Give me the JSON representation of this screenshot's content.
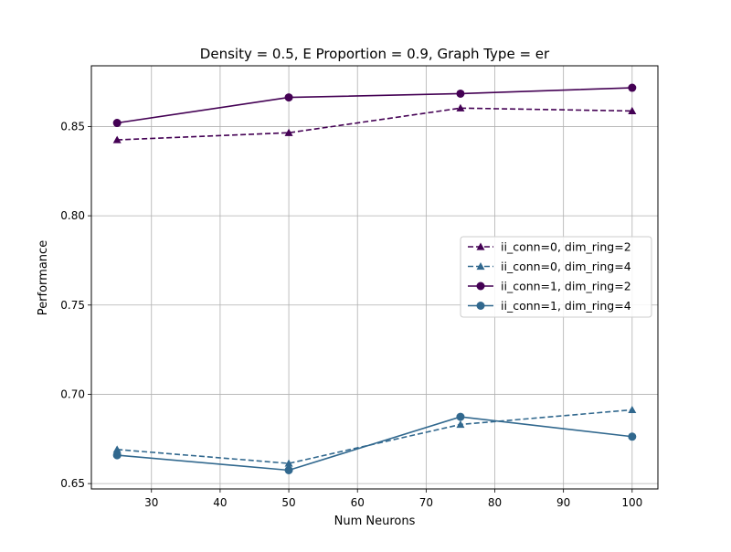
{
  "chart_data": {
    "type": "line",
    "title": "Density = 0.5, E Proportion = 0.9, Graph Type = er",
    "xlabel": "Num Neurons",
    "ylabel": "Performance",
    "x": [
      25,
      50,
      75,
      100
    ],
    "xlim": [
      21.25,
      103.75
    ],
    "ylim": [
      0.647,
      0.884
    ],
    "xticks": [
      30,
      40,
      50,
      60,
      70,
      80,
      90,
      100
    ],
    "yticks": [
      0.65,
      0.7,
      0.75,
      0.8,
      0.85
    ],
    "ytick_labels": [
      "0.65",
      "0.70",
      "0.75",
      "0.80",
      "0.85"
    ],
    "grid": true,
    "legend_position": "center-right",
    "series": [
      {
        "name": "ii_conn=0, dim_ring=2",
        "values": [
          0.8425,
          0.8465,
          0.8603,
          0.8587
        ],
        "color": "#440154",
        "dash": "dashed",
        "marker": "triangle"
      },
      {
        "name": "ii_conn=0, dim_ring=4",
        "values": [
          0.6691,
          0.6613,
          0.6831,
          0.6913
        ],
        "color": "#31688e",
        "dash": "dashed",
        "marker": "triangle"
      },
      {
        "name": "ii_conn=1, dim_ring=2",
        "values": [
          0.852,
          0.8663,
          0.8684,
          0.8717
        ],
        "color": "#440154",
        "dash": "solid",
        "marker": "circle"
      },
      {
        "name": "ii_conn=1, dim_ring=4",
        "values": [
          0.6659,
          0.6575,
          0.6874,
          0.6763
        ],
        "color": "#31688e",
        "dash": "solid",
        "marker": "circle"
      }
    ]
  }
}
